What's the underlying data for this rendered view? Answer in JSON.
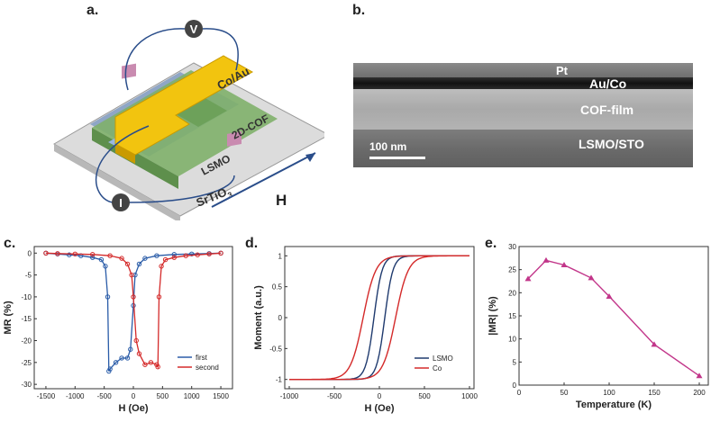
{
  "panels": {
    "a": {
      "label": "a.",
      "layers": {
        "top": "Co/Au",
        "cof": "2D-COF",
        "bottom": "LSMO",
        "substrate": "SrTiO",
        "substrate_sub": "3"
      },
      "voltmeter": "V",
      "current": "I",
      "field": "H"
    },
    "b": {
      "label": "b.",
      "layers": {
        "pt": "Pt",
        "auco": "Au/Co",
        "cof": "COF-film",
        "lsmo": "LSMO/STO"
      },
      "scale_bar": "100 nm"
    },
    "c": {
      "label": "c."
    },
    "d": {
      "label": "d."
    },
    "e": {
      "label": "e."
    }
  },
  "chart_data": [
    {
      "id": "c",
      "type": "line",
      "xlabel": "H (Oe)",
      "ylabel": "MR (%)",
      "xlim": [
        -1700,
        1700
      ],
      "ylim": [
        -31,
        1.5
      ],
      "xticks": [
        -1500,
        -1000,
        -500,
        0,
        500,
        1000,
        1500
      ],
      "yticks": [
        0,
        -5,
        -10,
        -15,
        -20,
        -25,
        -30
      ],
      "legend": "bottom-right",
      "series": [
        {
          "name": "first",
          "color": "#2a5ca8",
          "x": [
            -1500,
            -1300,
            -1100,
            -900,
            -700,
            -550,
            -480,
            -440,
            -420,
            -400,
            -300,
            -200,
            -100,
            -50,
            0,
            30,
            100,
            200,
            400,
            700,
            1000,
            1300,
            1500
          ],
          "y": [
            0,
            -0.2,
            -0.4,
            -0.6,
            -1.0,
            -1.5,
            -3,
            -10,
            -27,
            -26.5,
            -25,
            -24,
            -24,
            -22,
            -12,
            -5,
            -2.5,
            -1.2,
            -0.6,
            -0.3,
            -0.2,
            -0.1,
            0
          ]
        },
        {
          "name": "second",
          "color": "#d42a2a",
          "x": [
            1500,
            1300,
            1100,
            900,
            700,
            550,
            480,
            440,
            420,
            400,
            300,
            200,
            100,
            50,
            0,
            -30,
            -100,
            -200,
            -400,
            -700,
            -1000,
            -1300,
            -1500
          ],
          "y": [
            0,
            -0.2,
            -0.4,
            -0.6,
            -1.0,
            -1.5,
            -3,
            -10,
            -26,
            -25.5,
            -25,
            -25.5,
            -23,
            -20,
            -10,
            -5,
            -2.5,
            -1.2,
            -0.6,
            -0.3,
            -0.2,
            -0.1,
            0
          ]
        }
      ]
    },
    {
      "id": "d",
      "type": "line",
      "xlabel": "H (Oe)",
      "ylabel": "Moment (a.u.)",
      "xlim": [
        -1050,
        1050
      ],
      "ylim": [
        -1.15,
        1.15
      ],
      "xticks": [
        -1000,
        -500,
        0,
        500,
        1000
      ],
      "yticks": [
        1.0,
        0.5,
        0.0,
        -0.5,
        -1.0
      ],
      "legend": "bottom-right",
      "series": [
        {
          "name": "LSMO",
          "color": "#1f3a6e",
          "coercive": 60,
          "width": 90
        },
        {
          "name": "Co",
          "color": "#d42a2a",
          "coercive": 180,
          "width": 140
        }
      ]
    },
    {
      "id": "e",
      "type": "line",
      "xlabel": "Temperature (K)",
      "ylabel": "|MR| (%)",
      "xlim": [
        0,
        210
      ],
      "ylim": [
        0,
        30
      ],
      "xticks": [
        0,
        50,
        100,
        150,
        200
      ],
      "yticks": [
        0,
        5,
        10,
        15,
        20,
        25,
        30
      ],
      "color": "#c2368a",
      "x": [
        10,
        30,
        50,
        80,
        100,
        150,
        200
      ],
      "y": [
        23,
        27,
        26,
        23.2,
        19.2,
        8.8,
        2
      ]
    }
  ]
}
